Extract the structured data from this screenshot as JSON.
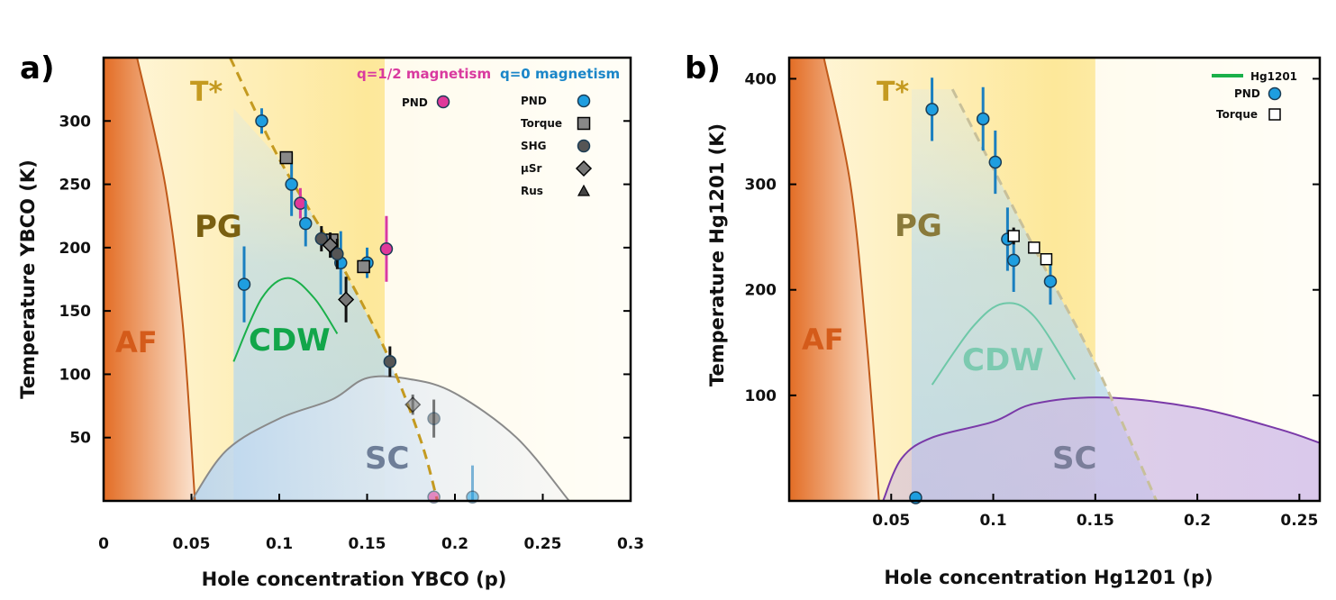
{
  "chart_data": [
    {
      "panel": "a)",
      "type": "scatter",
      "xlabel": "Hole concentration YBCO (p)",
      "ylabel": "Temperature YBCO (K)",
      "xlim": [
        0,
        0.3
      ],
      "ylim": [
        0,
        350
      ],
      "xticks": [
        0,
        0.05,
        0.1,
        0.15,
        0.2,
        0.25,
        0.3
      ],
      "xtick_labels": [
        "0",
        "0.05",
        "0.1",
        "0.15",
        "0.2",
        "0.25",
        "0.3"
      ],
      "yticks": [
        50,
        100,
        150,
        200,
        250,
        300
      ],
      "regions": {
        "AF": "AF",
        "PG": "PG",
        "CDW": "CDW",
        "SC": "SC",
        "Tstar": "T*"
      },
      "legend_headers": {
        "q_half": "q=1/2 magnetism",
        "q_zero": "q=0 magnetism"
      },
      "legend_placement": "top-right",
      "colors": {
        "pnd_q0": "#1e9ee0",
        "pnd_qhalf": "#e0399a",
        "af": "#e07a3a",
        "pg": "#f5d76e",
        "cdw": "#1ab04a",
        "sc": "#8090a8",
        "tstar": "#c09020",
        "qhalf_text": "#d93a9f",
        "q0_text": "#1a86c8"
      },
      "series": [
        {
          "name": "PND",
          "group": "q=1/2 magnetism",
          "marker": "circle",
          "color": "#e0399a",
          "points": [
            {
              "x": 0.112,
              "y": 235,
              "err": 12
            },
            {
              "x": 0.161,
              "y": 199,
              "err": 26
            },
            {
              "x": 0.188,
              "y": 3,
              "err": 0
            }
          ]
        },
        {
          "name": "PND",
          "group": "q=0 magnetism",
          "marker": "circle",
          "color": "#1e9ee0",
          "points": [
            {
              "x": 0.09,
              "y": 300,
              "err": 10
            },
            {
              "x": 0.08,
              "y": 171,
              "err": 30
            },
            {
              "x": 0.107,
              "y": 250,
              "err": 25
            },
            {
              "x": 0.115,
              "y": 219,
              "err": 18
            },
            {
              "x": 0.135,
              "y": 188,
              "err": 25
            },
            {
              "x": 0.15,
              "y": 188,
              "err": 12
            },
            {
              "x": 0.21,
              "y": 3,
              "err": 25
            }
          ]
        },
        {
          "name": "Torque",
          "marker": "square",
          "color": "#888888",
          "points": [
            {
              "x": 0.104,
              "y": 271
            },
            {
              "x": 0.13,
              "y": 206
            },
            {
              "x": 0.148,
              "y": 185
            }
          ]
        },
        {
          "name": "SHG",
          "marker": "circle",
          "color": "#555555",
          "points": [
            {
              "x": 0.124,
              "y": 207,
              "err": 10
            },
            {
              "x": 0.133,
              "y": 195,
              "err": 12
            },
            {
              "x": 0.163,
              "y": 110,
              "err": 12
            },
            {
              "x": 0.188,
              "y": 65,
              "err": 15
            }
          ]
        },
        {
          "name": "µSr",
          "marker": "diamond",
          "color": "#777777",
          "points": [
            {
              "x": 0.129,
              "y": 202,
              "err": 10
            },
            {
              "x": 0.138,
              "y": 159,
              "err": 18
            },
            {
              "x": 0.176,
              "y": 76,
              "err": 8
            }
          ]
        },
        {
          "name": "Rus",
          "marker": "triangle",
          "color": "#444444",
          "points": []
        }
      ],
      "lines": {
        "af_boundary": [
          [
            0.019,
            350
          ],
          [
            0.035,
            250
          ],
          [
            0.045,
            140
          ],
          [
            0.052,
            0
          ]
        ],
        "tstar": [
          [
            0.072,
            350
          ],
          [
            0.1,
            270
          ],
          [
            0.13,
            200
          ],
          [
            0.16,
            120
          ],
          [
            0.18,
            50
          ],
          [
            0.19,
            0
          ]
        ],
        "cdw_dome": [
          [
            0.074,
            110
          ],
          [
            0.09,
            160
          ],
          [
            0.105,
            176
          ],
          [
            0.12,
            160
          ],
          [
            0.133,
            132
          ]
        ],
        "sc_dome": [
          [
            0.05,
            0
          ],
          [
            0.07,
            40
          ],
          [
            0.1,
            65
          ],
          [
            0.13,
            80
          ],
          [
            0.15,
            97
          ],
          [
            0.175,
            96
          ],
          [
            0.2,
            85
          ],
          [
            0.235,
            50
          ],
          [
            0.265,
            0
          ]
        ]
      }
    },
    {
      "panel": "b)",
      "type": "scatter",
      "xlabel": "Hole concentration Hg1201 (p)",
      "ylabel": "Temperature Hg1201 (K)",
      "xlim": [
        0,
        0.26
      ],
      "ylim": [
        0,
        420
      ],
      "xticks": [
        0.05,
        0.1,
        0.15,
        0.2,
        0.25
      ],
      "xtick_labels": [
        "0.05",
        "0.1",
        "0.15",
        "0.2",
        "0.25"
      ],
      "yticks": [
        100,
        200,
        300,
        400
      ],
      "regions": {
        "AF": "AF",
        "PG": "PG",
        "CDW": "CDW",
        "SC": "SC",
        "Tstar": "T*"
      },
      "legend_placement": "top-right",
      "colors": {
        "pnd": "#1e9ee0",
        "sc": "#8a4fb5",
        "hg1201_line": "#1ab04a",
        "hg1201_text": "#7a3aa8"
      },
      "series": [
        {
          "name": "Hg1201",
          "marker": "line",
          "color": "#1ab04a",
          "points": []
        },
        {
          "name": "PND",
          "marker": "circle",
          "color": "#1e9ee0",
          "points": [
            {
              "x": 0.07,
              "y": 371,
              "err": 30
            },
            {
              "x": 0.095,
              "y": 362,
              "err": 30
            },
            {
              "x": 0.101,
              "y": 321,
              "err": 30
            },
            {
              "x": 0.107,
              "y": 248,
              "err": 30
            },
            {
              "x": 0.11,
              "y": 228,
              "err": 30
            },
            {
              "x": 0.128,
              "y": 208,
              "err": 22
            },
            {
              "x": 0.062,
              "y": 3,
              "err": 0
            }
          ]
        },
        {
          "name": "Torque",
          "marker": "square-open",
          "color": "#000000",
          "points": [
            {
              "x": 0.11,
              "y": 251,
              "err": 8
            },
            {
              "x": 0.12,
              "y": 240
            },
            {
              "x": 0.126,
              "y": 229
            }
          ]
        }
      ],
      "lines": {
        "af_boundary": [
          [
            0.017,
            420
          ],
          [
            0.03,
            300
          ],
          [
            0.038,
            150
          ],
          [
            0.044,
            0
          ]
        ],
        "tstar": [
          [
            0.08,
            390
          ],
          [
            0.12,
            240
          ],
          [
            0.15,
            130
          ],
          [
            0.18,
            0
          ]
        ],
        "cdw_dome": [
          [
            0.07,
            110
          ],
          [
            0.09,
            165
          ],
          [
            0.105,
            187
          ],
          [
            0.12,
            175
          ],
          [
            0.14,
            115
          ]
        ],
        "sc_dome": [
          [
            0.046,
            0
          ],
          [
            0.055,
            40
          ],
          [
            0.07,
            60
          ],
          [
            0.1,
            75
          ],
          [
            0.12,
            92
          ],
          [
            0.155,
            98
          ],
          [
            0.2,
            88
          ],
          [
            0.24,
            68
          ],
          [
            0.26,
            55
          ]
        ]
      }
    }
  ]
}
